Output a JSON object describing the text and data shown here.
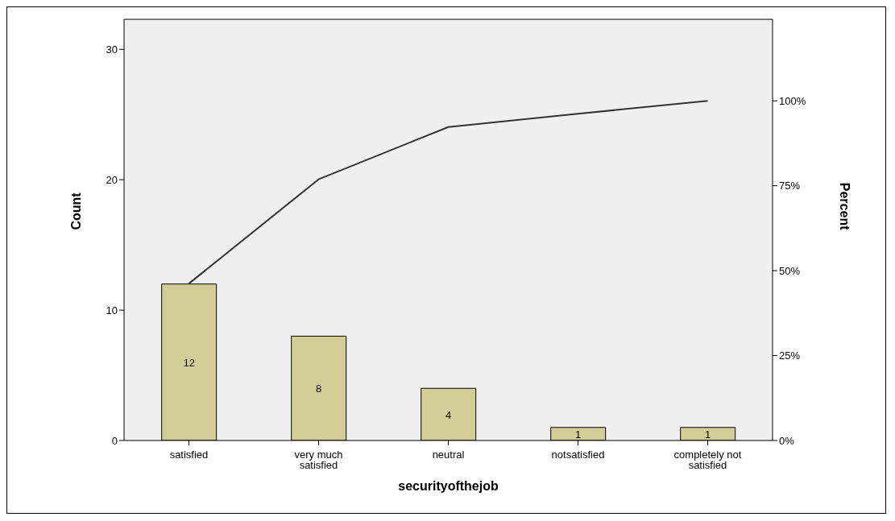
{
  "chart_data": {
    "type": "bar",
    "xlabel": "securityofthejob",
    "ylabel": "Count",
    "y2label": "Percent",
    "categories": [
      "satisfied",
      "very much satisfied",
      "neutral",
      "notsatisfied",
      "completely not satisfied"
    ],
    "series": [
      {
        "color": "#d3ce97",
        "values": [
          12,
          8,
          4,
          1,
          1
        ],
        "value_labels": [
          "12",
          "8",
          "4",
          "1",
          "1"
        ]
      },
      {
        "type": "line",
        "color": "#333333",
        "axis": "y2",
        "values": [
          46.2,
          76.9,
          92.3,
          96.2,
          100
        ]
      }
    ],
    "ylim": [
      0,
      32.3
    ],
    "yticks": [
      0,
      10,
      20,
      30
    ],
    "y2lim": [
      0,
      124
    ],
    "y2ticks": [
      {
        "value": 0,
        "label": "0%"
      },
      {
        "value": 25,
        "label": "25%"
      },
      {
        "value": 50,
        "label": "50%"
      },
      {
        "value": 75,
        "label": "75%"
      },
      {
        "value": 100,
        "label": "100%"
      }
    ],
    "grid": false,
    "marker": "none"
  }
}
